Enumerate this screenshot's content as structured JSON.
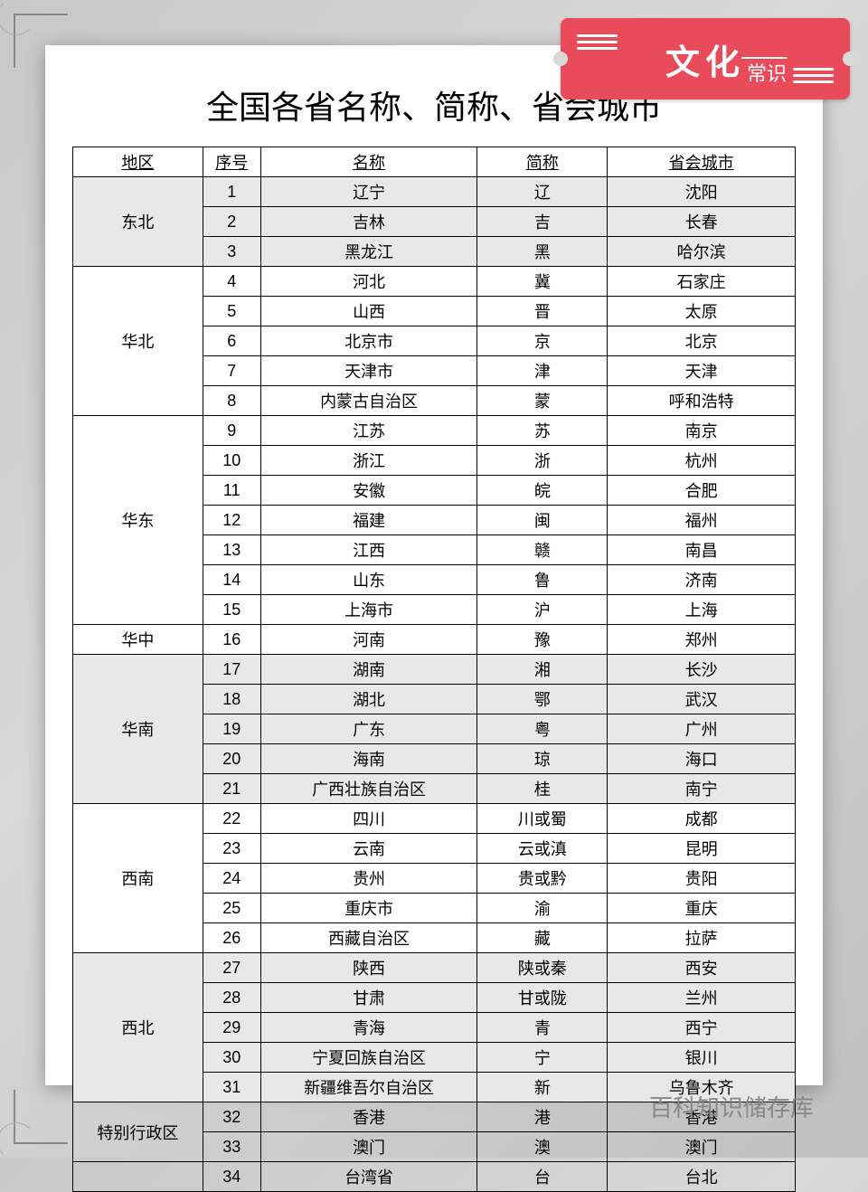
{
  "stamp": {
    "big": "文化",
    "small": "常识"
  },
  "title": "全国各省名称、简称、省会城市",
  "watermark": "百科知识储存库",
  "headers": {
    "region": "地区",
    "num": "序号",
    "name": "名称",
    "abbr": "简称",
    "capital": "省会城市"
  },
  "shaded_regions": [
    "东北",
    "华南",
    "西北"
  ],
  "groups": [
    {
      "region": "东北",
      "rows": [
        {
          "n": "1",
          "name": "辽宁",
          "abbr": "辽",
          "cap": "沈阳"
        },
        {
          "n": "2",
          "name": "吉林",
          "abbr": "吉",
          "cap": "长春"
        },
        {
          "n": "3",
          "name": "黑龙江",
          "abbr": "黑",
          "cap": "哈尔滨"
        }
      ]
    },
    {
      "region": "华北",
      "rows": [
        {
          "n": "4",
          "name": "河北",
          "abbr": "冀",
          "cap": "石家庄"
        },
        {
          "n": "5",
          "name": "山西",
          "abbr": "晋",
          "cap": "太原"
        },
        {
          "n": "6",
          "name": "北京市",
          "abbr": "京",
          "cap": "北京"
        },
        {
          "n": "7",
          "name": "天津市",
          "abbr": "津",
          "cap": "天津"
        },
        {
          "n": "8",
          "name": "内蒙古自治区",
          "abbr": "蒙",
          "cap": "呼和浩特"
        }
      ]
    },
    {
      "region": "华东",
      "rows": [
        {
          "n": "9",
          "name": "江苏",
          "abbr": "苏",
          "cap": "南京"
        },
        {
          "n": "10",
          "name": "浙江",
          "abbr": "浙",
          "cap": "杭州"
        },
        {
          "n": "11",
          "name": "安徽",
          "abbr": "皖",
          "cap": "合肥"
        },
        {
          "n": "12",
          "name": "福建",
          "abbr": "闽",
          "cap": "福州"
        },
        {
          "n": "13",
          "name": "江西",
          "abbr": "赣",
          "cap": "南昌"
        },
        {
          "n": "14",
          "name": "山东",
          "abbr": "鲁",
          "cap": "济南"
        },
        {
          "n": "15",
          "name": "上海市",
          "abbr": "沪",
          "cap": "上海"
        }
      ]
    },
    {
      "region": "华中",
      "rows": [
        {
          "n": "16",
          "name": "河南",
          "abbr": "豫",
          "cap": "郑州"
        }
      ]
    },
    {
      "region": "华南",
      "rows": [
        {
          "n": "17",
          "name": "湖南",
          "abbr": "湘",
          "cap": "长沙"
        },
        {
          "n": "18",
          "name": "湖北",
          "abbr": "鄂",
          "cap": "武汉"
        },
        {
          "n": "19",
          "name": "广东",
          "abbr": "粤",
          "cap": "广州"
        },
        {
          "n": "20",
          "name": "海南",
          "abbr": "琼",
          "cap": "海口"
        },
        {
          "n": "21",
          "name": "广西壮族自治区",
          "abbr": "桂",
          "cap": "南宁"
        }
      ]
    },
    {
      "region": "西南",
      "rows": [
        {
          "n": "22",
          "name": "四川",
          "abbr": "川或蜀",
          "cap": "成都"
        },
        {
          "n": "23",
          "name": "云南",
          "abbr": "云或滇",
          "cap": "昆明"
        },
        {
          "n": "24",
          "name": "贵州",
          "abbr": "贵或黔",
          "cap": "贵阳"
        },
        {
          "n": "25",
          "name": "重庆市",
          "abbr": "渝",
          "cap": "重庆"
        },
        {
          "n": "26",
          "name": "西藏自治区",
          "abbr": "藏",
          "cap": "拉萨"
        }
      ]
    },
    {
      "region": "西北",
      "rows": [
        {
          "n": "27",
          "name": "陕西",
          "abbr": "陕或秦",
          "cap": "西安"
        },
        {
          "n": "28",
          "name": "甘肃",
          "abbr": "甘或陇",
          "cap": "兰州"
        },
        {
          "n": "29",
          "name": "青海",
          "abbr": "青",
          "cap": "西宁"
        },
        {
          "n": "30",
          "name": "宁夏回族自治区",
          "abbr": "宁",
          "cap": "银川"
        },
        {
          "n": "31",
          "name": "新疆维吾尔自治区",
          "abbr": "新",
          "cap": "乌鲁木齐"
        }
      ]
    },
    {
      "region": "特别行政区",
      "rows": [
        {
          "n": "32",
          "name": "香港",
          "abbr": "港",
          "cap": "香港"
        },
        {
          "n": "33",
          "name": "澳门",
          "abbr": "澳",
          "cap": "澳门"
        }
      ]
    },
    {
      "region": "",
      "rows": [
        {
          "n": "34",
          "name": "台湾省",
          "abbr": "台",
          "cap": "台北"
        }
      ]
    }
  ],
  "colors": {
    "stamp_bg": "#e94b5a",
    "page_bg": "#ffffff",
    "body_bg": "#d0d0d0",
    "shaded_row": "#e8e8e8",
    "border": "#000000",
    "watermark": "#888888"
  }
}
